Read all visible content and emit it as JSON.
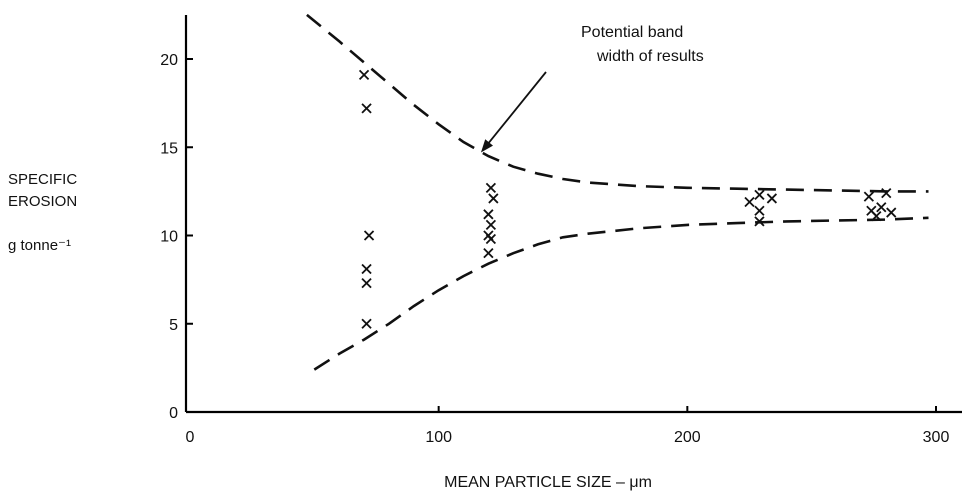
{
  "chart_data": {
    "type": "scatter",
    "title": "",
    "xlabel": "MEAN PARTICLE SIZE – μm",
    "ylabel_lines": [
      "SPECIFIC",
      "EROSION",
      "g tonne⁻¹"
    ],
    "xlim": [
      0,
      300
    ],
    "ylim": [
      0,
      22
    ],
    "x_ticks": [
      0,
      100,
      200,
      300
    ],
    "y_ticks": [
      0,
      5,
      10,
      15,
      20
    ],
    "grid": false,
    "series": [
      {
        "marker": "x",
        "x": [
          70,
          71,
          72,
          71,
          71,
          71,
          120,
          120,
          121,
          120,
          122,
          121,
          121,
          225,
          229,
          229,
          229,
          234,
          273,
          274,
          276,
          278,
          280,
          282
        ],
        "y": [
          19.1,
          17.2,
          10.0,
          8.1,
          7.3,
          5.0,
          9.0,
          10.0,
          10.6,
          11.2,
          12.1,
          12.7,
          9.8,
          11.9,
          12.3,
          11.4,
          10.8,
          12.1,
          12.2,
          11.4,
          11.1,
          11.6,
          12.4,
          11.3
        ]
      }
    ],
    "band_upper": {
      "style": "dashed",
      "x": [
        47,
        60,
        70,
        80,
        90,
        100,
        110,
        120,
        130,
        140,
        150,
        160,
        180,
        200,
        220,
        240,
        260,
        280,
        297
      ],
      "y": [
        22.5,
        21.0,
        19.8,
        18.6,
        17.4,
        16.3,
        15.3,
        14.5,
        13.9,
        13.5,
        13.2,
        13.0,
        12.8,
        12.7,
        12.65,
        12.6,
        12.55,
        12.5,
        12.5
      ]
    },
    "band_lower": {
      "style": "dashed",
      "x": [
        50,
        60,
        70,
        80,
        90,
        100,
        110,
        120,
        130,
        140,
        150,
        160,
        180,
        200,
        220,
        240,
        260,
        280,
        297
      ],
      "y": [
        2.4,
        3.3,
        4.1,
        5.0,
        6.0,
        6.9,
        7.7,
        8.4,
        9.0,
        9.5,
        9.9,
        10.1,
        10.4,
        10.6,
        10.7,
        10.8,
        10.85,
        10.9,
        11.0
      ]
    },
    "annotations": [
      {
        "lines": [
          "Potential band",
          "width of results"
        ],
        "arrow_to": [
          117,
          14.7
        ]
      }
    ]
  }
}
